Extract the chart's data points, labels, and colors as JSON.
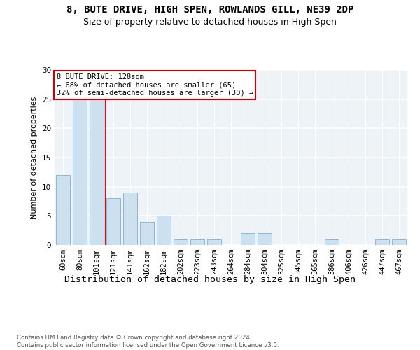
{
  "title_line1": "8, BUTE DRIVE, HIGH SPEN, ROWLANDS GILL, NE39 2DP",
  "title_line2": "Size of property relative to detached houses in High Spen",
  "xlabel": "Distribution of detached houses by size in High Spen",
  "ylabel": "Number of detached properties",
  "bar_color": "#cce0f0",
  "bar_edgecolor": "#7ab0d4",
  "categories": [
    "60sqm",
    "80sqm",
    "101sqm",
    "121sqm",
    "141sqm",
    "162sqm",
    "182sqm",
    "202sqm",
    "223sqm",
    "243sqm",
    "264sqm",
    "284sqm",
    "304sqm",
    "325sqm",
    "345sqm",
    "365sqm",
    "386sqm",
    "406sqm",
    "426sqm",
    "447sqm",
    "467sqm"
  ],
  "values": [
    12,
    25,
    25,
    8,
    9,
    4,
    5,
    1,
    1,
    1,
    0,
    2,
    2,
    0,
    0,
    0,
    1,
    0,
    0,
    1,
    1
  ],
  "ylim": [
    0,
    30
  ],
  "yticks": [
    0,
    5,
    10,
    15,
    20,
    25,
    30
  ],
  "annotation_text": "8 BUTE DRIVE: 128sqm\n← 68% of detached houses are smaller (65)\n32% of semi-detached houses are larger (30) →",
  "annotation_box_color": "#ffffff",
  "annotation_box_edgecolor": "#cc0000",
  "red_line_x": 2.5,
  "background_color": "#eef3f8",
  "grid_color": "#ffffff",
  "footer_text": "Contains HM Land Registry data © Crown copyright and database right 2024.\nContains public sector information licensed under the Open Government Licence v3.0.",
  "title_fontsize": 10,
  "subtitle_fontsize": 9,
  "axis_label_fontsize": 9,
  "tick_fontsize": 7.5,
  "annotation_fontsize": 7.5,
  "ylabel_fontsize": 8
}
